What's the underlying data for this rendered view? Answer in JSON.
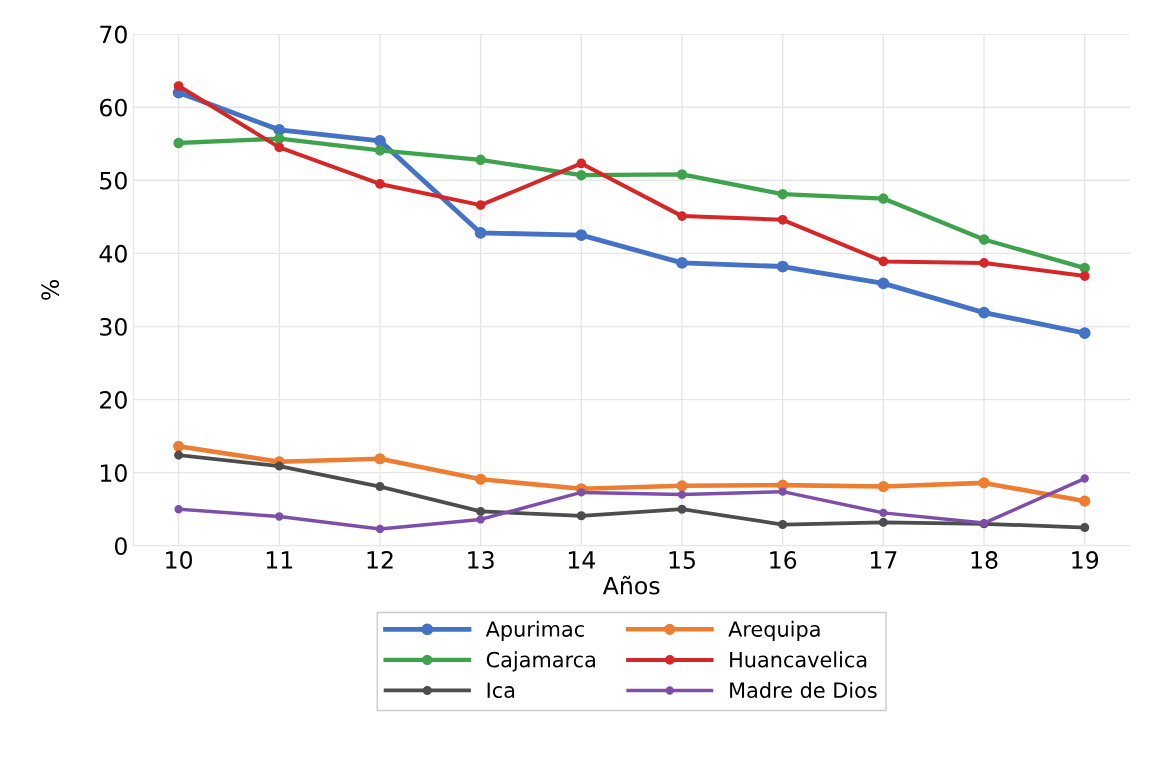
{
  "chart_data": {
    "type": "line",
    "xlabel": "Años",
    "ylabel": "%",
    "categories": [
      "10",
      "11",
      "12",
      "13",
      "14",
      "15",
      "16",
      "17",
      "18",
      "19"
    ],
    "series": [
      {
        "name": "Apurimac",
        "color": "#4472c4",
        "values": [
          62.0,
          56.9,
          55.4,
          42.8,
          42.5,
          38.7,
          38.2,
          35.9,
          31.9,
          29.1
        ]
      },
      {
        "name": "Arequipa",
        "color": "#ed7d31",
        "values": [
          13.6,
          11.5,
          11.9,
          9.1,
          7.8,
          8.2,
          8.3,
          8.1,
          8.6,
          6.1
        ]
      },
      {
        "name": "Cajamarca",
        "color": "#3fa34d",
        "values": [
          55.1,
          55.7,
          54.1,
          52.8,
          50.7,
          50.8,
          48.1,
          47.5,
          41.9,
          38.0
        ]
      },
      {
        "name": "Huancavelica",
        "color": "#d62728",
        "values": [
          62.9,
          54.5,
          49.5,
          46.6,
          52.3,
          45.1,
          44.6,
          38.9,
          38.7,
          36.9
        ]
      },
      {
        "name": "Ica",
        "color": "#4d4d4d",
        "values": [
          12.4,
          10.9,
          8.1,
          4.7,
          4.1,
          5.0,
          2.9,
          3.2,
          3.0,
          2.5
        ]
      },
      {
        "name": "Madre de Dios",
        "color": "#7e4fa8",
        "values": [
          5.0,
          4.0,
          2.3,
          3.6,
          7.3,
          7.0,
          7.4,
          4.5,
          3.1,
          9.2
        ]
      }
    ],
    "ylim": [
      0,
      70
    ],
    "yticks": [
      0,
      10,
      20,
      30,
      40,
      50,
      60,
      70
    ],
    "grid": true,
    "legend": "bottom",
    "marker": "circle",
    "line_style": "solid"
  }
}
